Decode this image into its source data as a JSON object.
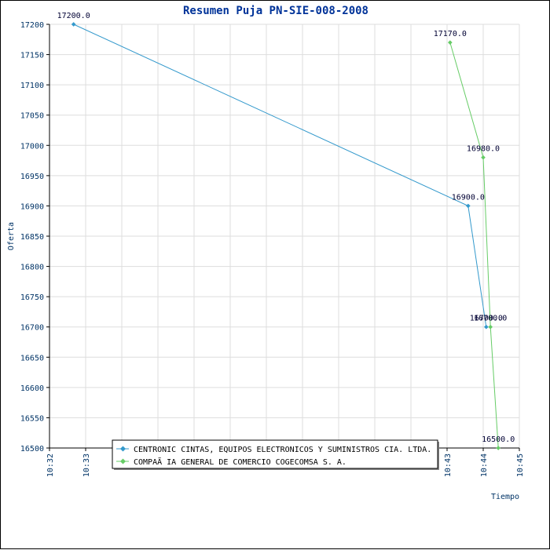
{
  "chart_data": {
    "type": "line",
    "title": "Resumen Puja PN-SIE-008-2008",
    "xlabel": "Tiempo",
    "ylabel": "Oferta",
    "ylim": [
      16500,
      17200
    ],
    "y_ticks": [
      16500,
      16550,
      16600,
      16650,
      16700,
      16750,
      16800,
      16850,
      16900,
      16950,
      17000,
      17050,
      17100,
      17150,
      17200
    ],
    "x_ticks": [
      "10:32",
      "10:33",
      "10:34",
      "10:35",
      "10:36",
      "10:37",
      "10:38",
      "10:39",
      "10:40",
      "10:41",
      "10:42",
      "10:43",
      "10:44",
      "10:45"
    ],
    "x_tick_labels": [
      "10:32",
      "10:33",
      "10",
      "10",
      "10",
      "10",
      "10",
      "10",
      "10",
      "10",
      "10",
      "10:43",
      "10:44",
      "10:45"
    ],
    "xlim": [
      "10:32",
      "10:45"
    ],
    "grid": true,
    "legend_position": "bottom-center",
    "series": [
      {
        "name": "CENTRONIC CINTAS, EQUIPOS ELECTRONICOS Y SUMINISTROS CIA. LTDA.",
        "color": "#3399cc",
        "points": [
          {
            "x": "10:32:40",
            "y": 17200,
            "label": "17200.0"
          },
          {
            "x": "10:43:35",
            "y": 16900,
            "label": "16900.0"
          },
          {
            "x": "10:44:05",
            "y": 16700,
            "label": "16700.0"
          }
        ]
      },
      {
        "name": "COMPAÃ IA GENERAL DE COMERCIO COGECOMSA S. A.",
        "color": "#66cc66",
        "points": [
          {
            "x": "10:43:05",
            "y": 17170,
            "label": "17170.0"
          },
          {
            "x": "10:44:00",
            "y": 16980,
            "label": "16980.0"
          },
          {
            "x": "10:44:12",
            "y": 16700,
            "label": "16700.0"
          },
          {
            "x": "10:44:25",
            "y": 16500,
            "label": "16500.0"
          }
        ]
      }
    ]
  }
}
